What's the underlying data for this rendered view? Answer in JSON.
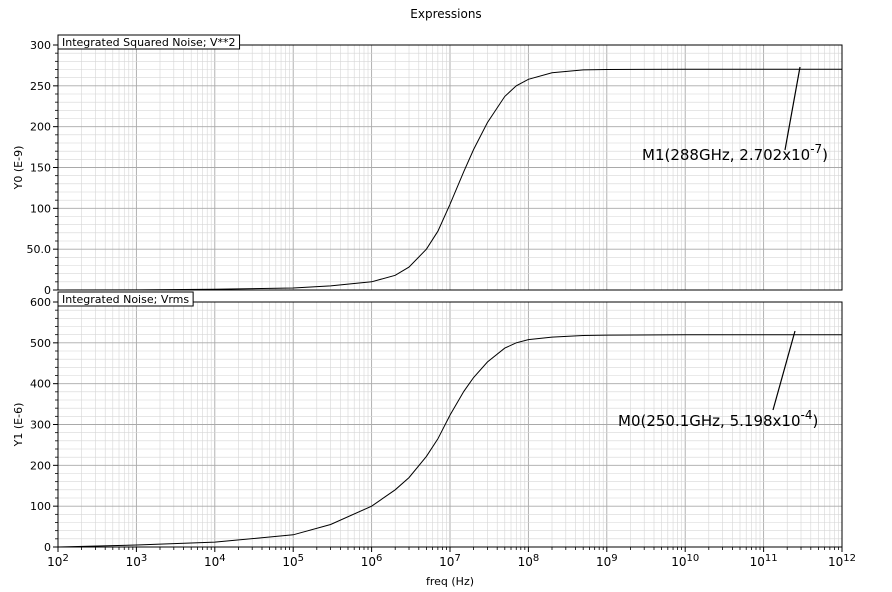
{
  "window": {
    "title": "Expressions"
  },
  "chart_data": [
    {
      "type": "line",
      "title": "Integrated Squared Noise; V**2",
      "ylabel": "Y0 (E-9)",
      "xscale": "log",
      "xlim": [
        100,
        1000000000000
      ],
      "ylim": [
        0,
        300
      ],
      "ytick_labels": [
        "0",
        "50.0",
        "100",
        "150",
        "200",
        "250",
        "300"
      ],
      "ytick_values": [
        0,
        50,
        100,
        150,
        200,
        250,
        300
      ],
      "grid": true,
      "series": [
        {
          "x": [
            100,
            1000,
            10000,
            100000,
            300000,
            1000000,
            2000000,
            3000000,
            5000000,
            7000000,
            10000000,
            15000000,
            20000000,
            30000000,
            50000000,
            70000000,
            100000000,
            200000000,
            500000000,
            1000000000,
            10000000000,
            100000000000,
            1000000000000
          ],
          "values": [
            0.0,
            0.1,
            0.8,
            2.5,
            5.0,
            10.0,
            18.0,
            28.0,
            50.0,
            72.0,
            105.0,
            145.0,
            172.0,
            205.0,
            237.0,
            250.0,
            258.0,
            266.0,
            269.5,
            270.0,
            270.2,
            270.2,
            270.2
          ]
        }
      ],
      "marker": {
        "label": "M1(288GHz, 2.702x10",
        "exponent": "-7",
        "close": ")",
        "x": 288000000000,
        "y": 270.2
      }
    },
    {
      "type": "line",
      "title": "Integrated Noise; Vrms",
      "ylabel": "Y1 (E-6)",
      "xlabel": "freq (Hz)",
      "xscale": "log",
      "xlim": [
        100,
        1000000000000
      ],
      "ylim": [
        0,
        600
      ],
      "ytick_labels": [
        "0",
        "100",
        "200",
        "300",
        "400",
        "500",
        "600"
      ],
      "ytick_values": [
        0,
        100,
        200,
        300,
        400,
        500,
        600
      ],
      "xtick_base": "10",
      "xtick_exponents": [
        "2",
        "3",
        "4",
        "5",
        "6",
        "7",
        "8",
        "9",
        "10",
        "11",
        "12"
      ],
      "grid": true,
      "series": [
        {
          "x": [
            100,
            1000,
            10000,
            100000,
            300000,
            1000000,
            2000000,
            3000000,
            5000000,
            7000000,
            10000000,
            15000000,
            20000000,
            30000000,
            50000000,
            70000000,
            100000000,
            200000000,
            500000000,
            1000000000,
            10000000000,
            100000000000,
            1000000000000
          ],
          "values": [
            0,
            5,
            12,
            30,
            55,
            100,
            140,
            170,
            222,
            265,
            323,
            381,
            415,
            453,
            487,
            500,
            508,
            514,
            518,
            519,
            519.8,
            519.8,
            519.8
          ]
        }
      ],
      "marker": {
        "label": "M0(250.1GHz, 5.198x10",
        "exponent": "-4",
        "close": ")",
        "x": 250100000000,
        "y": 519.8
      }
    }
  ]
}
